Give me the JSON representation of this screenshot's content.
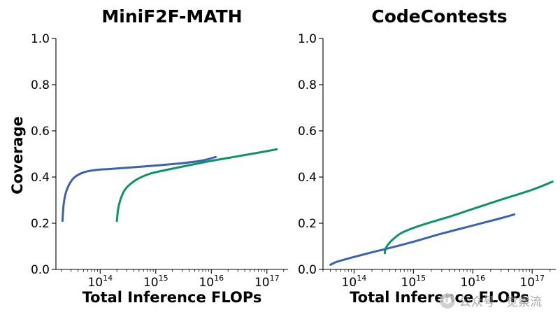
{
  "colors": {
    "blue": "#3a62b0",
    "green": "#0b9467"
  },
  "watermark": {
    "text": "公众号 · 觉察流"
  },
  "chart_data": [
    {
      "type": "line",
      "title": "MiniF2F-MATH",
      "xlabel": "Total Inference FLOPs",
      "ylabel": "Coverage",
      "xscale": "log",
      "xlim": [
        16000000000000.0,
        2.4e+17
      ],
      "ylim": [
        0.0,
        1.0
      ],
      "yticks": [
        "0.0",
        "0.2",
        "0.4",
        "0.6",
        "0.8",
        "1.0"
      ],
      "xticks": [
        {
          "base": "10",
          "exp": "14",
          "value": 100000000000000.0
        },
        {
          "base": "10",
          "exp": "15",
          "value": 1000000000000000.0
        },
        {
          "base": "10",
          "exp": "16",
          "value": 1e+16
        },
        {
          "base": "10",
          "exp": "17",
          "value": 1e+17
        }
      ],
      "series": [
        {
          "name": "blue",
          "color": "#3a62b0",
          "x": [
            21000000000000.0,
            22000000000000.0,
            24000000000000.0,
            28000000000000.0,
            35000000000000.0,
            50000000000000.0,
            80000000000000.0,
            150000000000000.0,
            300000000000000.0,
            1000000000000000.0,
            3000000000000000.0,
            7000000000000000.0,
            1.2e+16
          ],
          "y": [
            0.21,
            0.28,
            0.33,
            0.37,
            0.4,
            0.42,
            0.43,
            0.435,
            0.44,
            0.45,
            0.46,
            0.472,
            0.487
          ]
        },
        {
          "name": "green",
          "color": "#0b9467",
          "x": [
            200000000000000.0,
            210000000000000.0,
            230000000000000.0,
            270000000000000.0,
            350000000000000.0,
            500000000000000.0,
            800000000000000.0,
            1500000000000000.0,
            3000000000000000.0,
            1e+16,
            3e+16,
            8e+16,
            1.5e+17
          ],
          "y": [
            0.21,
            0.26,
            0.3,
            0.34,
            0.37,
            0.395,
            0.415,
            0.43,
            0.445,
            0.47,
            0.49,
            0.508,
            0.52
          ]
        }
      ]
    },
    {
      "type": "line",
      "title": "CodeContests",
      "xlabel": "Total Inference FLOPs",
      "ylabel": "",
      "xscale": "log",
      "xlim": [
        30000000000000.0,
        2.5e+17
      ],
      "ylim": [
        0.0,
        1.0
      ],
      "yticks": [
        "0.0",
        "0.2",
        "0.4",
        "0.6",
        "0.8",
        "1.0"
      ],
      "xticks": [
        {
          "base": "10",
          "exp": "14",
          "value": 100000000000000.0
        },
        {
          "base": "10",
          "exp": "15",
          "value": 1000000000000000.0
        },
        {
          "base": "10",
          "exp": "16",
          "value": 1e+16
        },
        {
          "base": "10",
          "exp": "17",
          "value": 1e+17
        }
      ],
      "series": [
        {
          "name": "blue",
          "color": "#3a62b0",
          "x": [
            40000000000000.0,
            50000000000000.0,
            70000000000000.0,
            100000000000000.0,
            200000000000000.0,
            400000000000000.0,
            1000000000000000.0,
            3000000000000000.0,
            1e+16,
            3e+16,
            5e+16
          ],
          "y": [
            0.02,
            0.032,
            0.043,
            0.054,
            0.074,
            0.093,
            0.12,
            0.155,
            0.19,
            0.222,
            0.238
          ]
        },
        {
          "name": "green",
          "color": "#0b9467",
          "x": [
            330000000000000.0,
            340000000000000.0,
            380000000000000.0,
            450000000000000.0,
            600000000000000.0,
            800000000000000.0,
            1200000000000000.0,
            2000000000000000.0,
            4000000000000000.0,
            1e+16,
            3e+16,
            1e+17,
            2.2e+17
          ],
          "y": [
            0.07,
            0.09,
            0.11,
            0.13,
            0.155,
            0.17,
            0.187,
            0.205,
            0.228,
            0.262,
            0.302,
            0.345,
            0.38
          ]
        }
      ]
    }
  ]
}
